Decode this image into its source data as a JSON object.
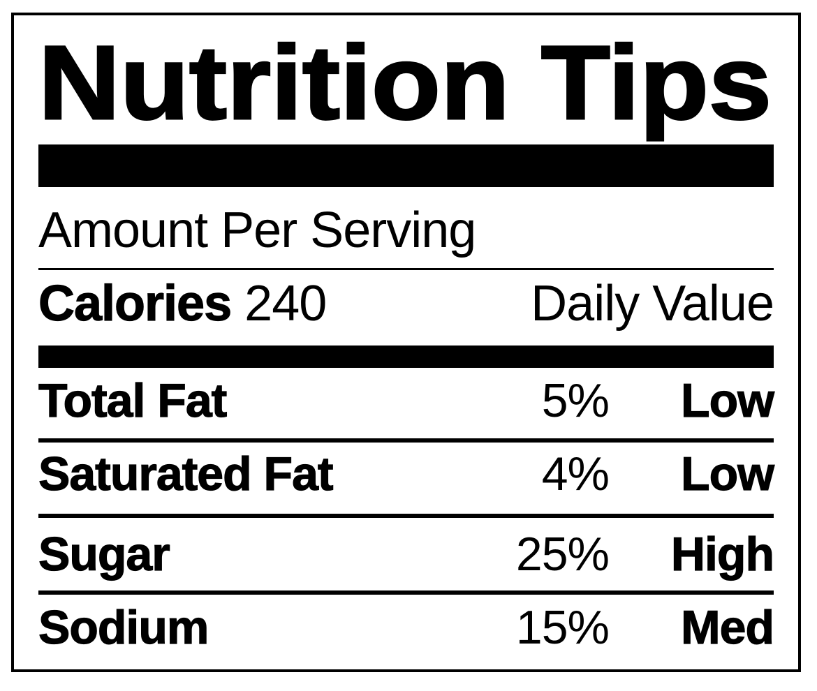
{
  "label": {
    "title": "Nutrition Tips",
    "serving_header": "Amount Per Serving",
    "calories": {
      "label": "Calories",
      "value": "240"
    },
    "daily_value_header": "Daily Value",
    "nutrients": [
      {
        "name": "Total Fat",
        "percent": "5%",
        "level": "Low"
      },
      {
        "name": "Saturated Fat",
        "percent": "4%",
        "level": "Low"
      },
      {
        "name": "Sugar",
        "percent": "25%",
        "level": "High"
      },
      {
        "name": "Sodium",
        "percent": "15%",
        "level": "Med"
      }
    ],
    "colors": {
      "ink": "#000000",
      "background": "#ffffff"
    }
  }
}
